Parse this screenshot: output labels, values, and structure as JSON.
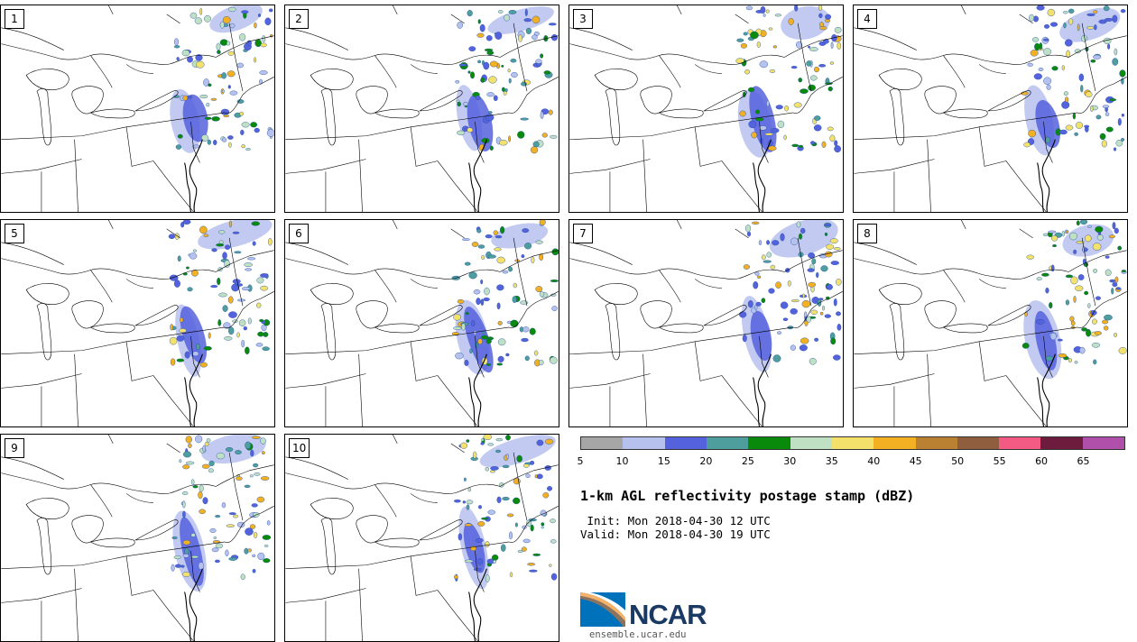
{
  "panels": [
    {
      "label": "1"
    },
    {
      "label": "2"
    },
    {
      "label": "3"
    },
    {
      "label": "4"
    },
    {
      "label": "5"
    },
    {
      "label": "6"
    },
    {
      "label": "7"
    },
    {
      "label": "8"
    },
    {
      "label": "9"
    },
    {
      "label": "10"
    }
  ],
  "colorbar": {
    "colors": [
      "#a6a6a6",
      "#b7c1ee",
      "#5562dd",
      "#4e9e9e",
      "#0a8a0a",
      "#c0e0c4",
      "#f3e16b",
      "#f2b022",
      "#bb8133",
      "#8e5e3f",
      "#f35a84",
      "#6e1c3d",
      "#b150aa"
    ],
    "ticks": [
      "5",
      "10",
      "15",
      "20",
      "25",
      "30",
      "35",
      "40",
      "45",
      "50",
      "55",
      "60",
      "65"
    ]
  },
  "title": "1-km AGL reflectivity postage stamp (dBZ)",
  "init": " Init: Mon 2018-04-30 12 UTC",
  "valid": "Valid: Mon 2018-04-30 19 UTC",
  "logo": {
    "name": "NCAR",
    "url": "ensemble.ucar.edu"
  }
}
